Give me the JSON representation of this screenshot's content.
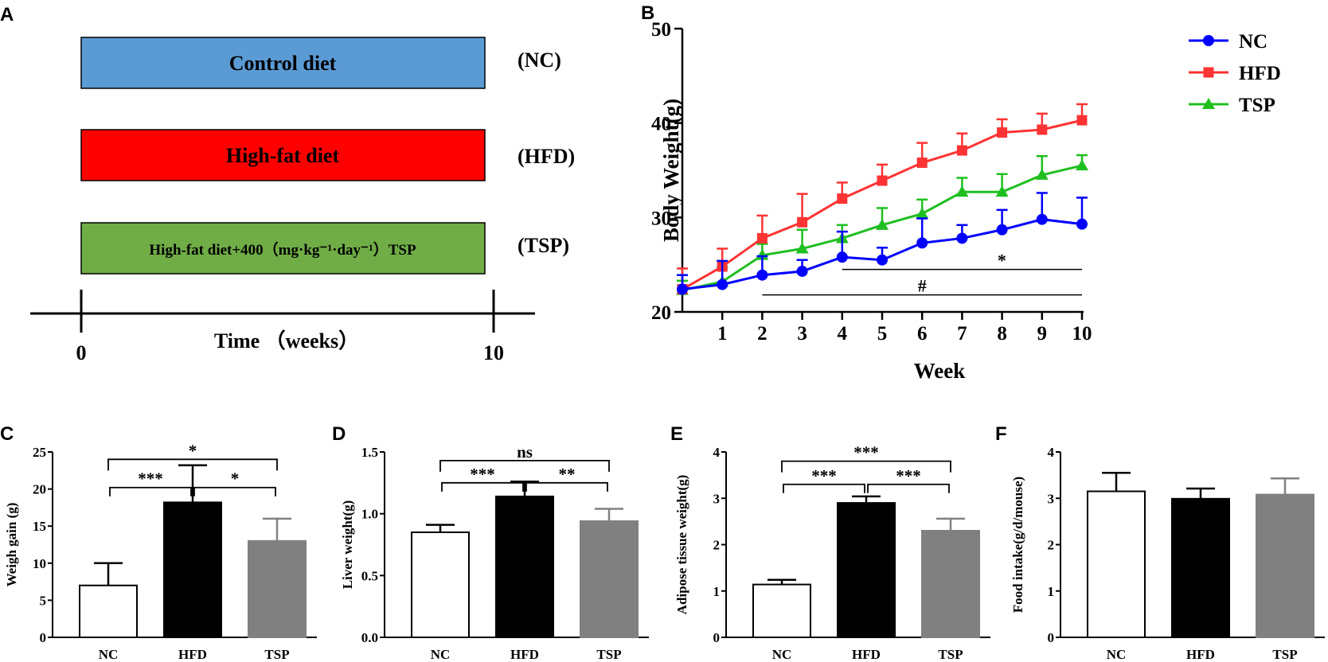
{
  "panel_labels": {
    "a": "A",
    "b": "B",
    "c": "C",
    "d": "D",
    "e": "E",
    "f": "F"
  },
  "colors": {
    "nc_box": "#5b9bd5",
    "hfd_box": "#ff0000",
    "tsp_box": "#70ad47",
    "nc_line": "#0000ff",
    "hfd_line": "#ff3333",
    "tsp_line": "#1fbf1f",
    "bar_nc": "#ffffff",
    "bar_hfd": "#000000",
    "bar_tsp": "#808080"
  },
  "diagram": {
    "boxes": [
      {
        "text": "Control diet",
        "group": "(NC)"
      },
      {
        "text": "High-fat diet",
        "group": "(HFD)"
      },
      {
        "text": "High-fat diet+400（mg·kg⁻¹·day⁻¹）TSP",
        "group": "(TSP)"
      }
    ],
    "axis_label": "Time （weeks）",
    "start_label": "0",
    "end_label": "10"
  },
  "chart_data": [
    {
      "panel": "B",
      "type": "line",
      "xlabel": "Week",
      "ylabel": "Body Weight(g)",
      "x": [
        0,
        1,
        2,
        3,
        4,
        5,
        6,
        7,
        8,
        9,
        10
      ],
      "xticks": [
        "1",
        "2",
        "3",
        "4",
        "5",
        "6",
        "7",
        "8",
        "9",
        "10"
      ],
      "yticks": [
        "20",
        "30",
        "40",
        "50"
      ],
      "ylim": [
        20,
        50
      ],
      "series": [
        {
          "name": "NC",
          "values": [
            22.4,
            22.9,
            23.9,
            24.3,
            25.8,
            25.5,
            27.3,
            27.8,
            28.7,
            29.8,
            29.3
          ],
          "errors": [
            1.5,
            2.5,
            2.0,
            1.2,
            2.7,
            1.3,
            2.6,
            1.4,
            2.1,
            2.8,
            2.8
          ]
        },
        {
          "name": "HFD",
          "values": [
            22.4,
            24.8,
            27.8,
            29.5,
            32.0,
            33.9,
            35.8,
            37.1,
            39.0,
            39.3,
            40.3
          ],
          "errors": [
            2.2,
            1.9,
            2.4,
            3.0,
            1.7,
            1.7,
            2.1,
            1.8,
            1.4,
            1.7,
            1.7
          ]
        },
        {
          "name": "TSP",
          "values": [
            22.3,
            23.2,
            26.0,
            26.7,
            27.8,
            29.2,
            30.4,
            32.7,
            32.7,
            34.5,
            35.5
          ],
          "errors": [
            1.0,
            1.5,
            1.2,
            2.0,
            1.4,
            1.8,
            1.5,
            1.5,
            1.9,
            2.0,
            1.1
          ]
        }
      ],
      "annotations": [
        {
          "text": "*",
          "x_from": 4,
          "x_to": 10,
          "y": 24.5
        },
        {
          "text": "#",
          "x_from": 2,
          "x_to": 10,
          "y": 21.8
        }
      ]
    },
    {
      "panel": "C",
      "type": "bar",
      "ylabel": "Weigh gain (g)",
      "categories": [
        "NC",
        "HFD",
        "TSP"
      ],
      "values": [
        7.0,
        18.2,
        13.0
      ],
      "errors": [
        3.0,
        5.0,
        3.0
      ],
      "yticks": [
        "0",
        "5",
        "10",
        "15",
        "20",
        "25"
      ],
      "ylim": [
        0,
        25
      ],
      "brackets": [
        {
          "from": 0,
          "to": 1,
          "y": 20.2,
          "text": "***"
        },
        {
          "from": 1,
          "to": 2,
          "y": 20.2,
          "text": "*"
        },
        {
          "from": 0,
          "to": 2,
          "y": 24.0,
          "text": "*"
        }
      ]
    },
    {
      "panel": "D",
      "type": "bar",
      "ylabel": "Liver weight(g)",
      "categories": [
        "NC",
        "HFD",
        "TSP"
      ],
      "values": [
        0.85,
        1.14,
        0.94
      ],
      "errors": [
        0.06,
        0.12,
        0.1
      ],
      "yticks": [
        "0.0",
        "0.5",
        "1.0",
        "1.5"
      ],
      "ylim": [
        0,
        1.5
      ],
      "brackets": [
        {
          "from": 0,
          "to": 1,
          "y": 1.25,
          "text": "***"
        },
        {
          "from": 1,
          "to": 2,
          "y": 1.25,
          "text": "**"
        },
        {
          "from": 0,
          "to": 2,
          "y": 1.43,
          "text": "ns"
        }
      ]
    },
    {
      "panel": "E",
      "type": "bar",
      "ylabel": "Adipose tissue weight(g)",
      "categories": [
        "NC",
        "HFD",
        "TSP"
      ],
      "values": [
        1.14,
        2.9,
        2.3
      ],
      "errors": [
        0.1,
        0.14,
        0.26
      ],
      "yticks": [
        "0",
        "1",
        "2",
        "3",
        "4"
      ],
      "ylim": [
        0,
        4
      ],
      "brackets": [
        {
          "from": 0,
          "to": 1,
          "y": 3.3,
          "text": "***"
        },
        {
          "from": 1,
          "to": 2,
          "y": 3.3,
          "text": "***"
        },
        {
          "from": 0,
          "to": 2,
          "y": 3.8,
          "text": "***"
        }
      ]
    },
    {
      "panel": "F",
      "type": "bar",
      "ylabel": "Food intake(g/d/mouse)",
      "categories": [
        "NC",
        "HFD",
        "TSP"
      ],
      "values": [
        3.15,
        2.99,
        3.08
      ],
      "errors": [
        0.4,
        0.22,
        0.35
      ],
      "yticks": [
        "0",
        "1",
        "2",
        "3",
        "4"
      ],
      "ylim": [
        0,
        4
      ],
      "brackets": []
    }
  ]
}
